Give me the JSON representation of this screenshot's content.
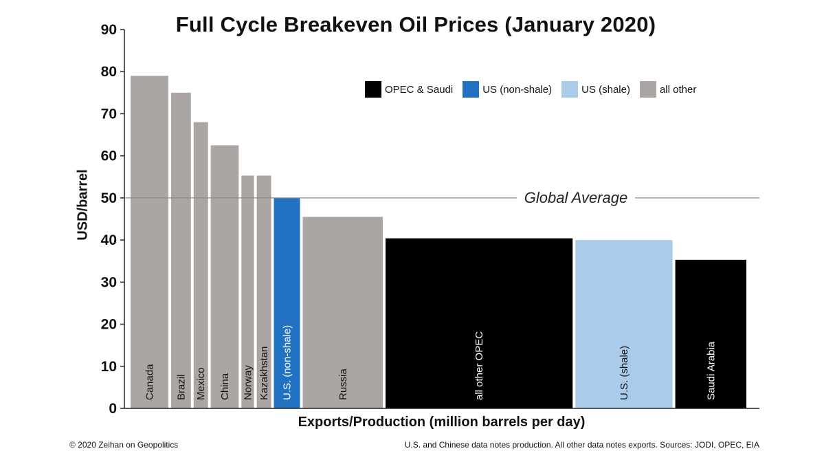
{
  "chart_data": {
    "type": "bar",
    "variable_width": true,
    "title": "Full Cycle Breakeven Oil Prices (January 2020)",
    "xlabel": "Exports/Production (million barrels per day)",
    "ylabel": "USD/barrel",
    "ylim": [
      0,
      90
    ],
    "yticks": [
      "0",
      "10",
      "20",
      "30",
      "40",
      "50",
      "60",
      "70",
      "80",
      "90"
    ],
    "grid": false,
    "legend_placement": "top-right",
    "colors": {
      "opec": "#000000",
      "us_nonshale": "#2272c3",
      "us_shale": "#abcbeb",
      "other": "#aba5a3",
      "axis": "#222222",
      "reference_line": "#8a8a8a"
    },
    "legend": [
      {
        "label": "OPEC & Saudi",
        "group": "opec"
      },
      {
        "label": "US (non-shale)",
        "group": "us_nonshale"
      },
      {
        "label": "US (shale)",
        "group": "us_shale"
      },
      {
        "label": "all other",
        "group": "other"
      }
    ],
    "reference_line": {
      "label": "Global Average",
      "value": 50
    },
    "bars": [
      {
        "label": "Canada",
        "value": 79,
        "width": 4.2,
        "group": "other"
      },
      {
        "label": "Brazil",
        "value": 75,
        "width": 2.2,
        "group": "other"
      },
      {
        "label": "Mexico",
        "value": 68,
        "width": 1.6,
        "group": "other"
      },
      {
        "label": "China",
        "value": 62.5,
        "width": 3.1,
        "group": "other"
      },
      {
        "label": "Norway",
        "value": 55.3,
        "width": 1.4,
        "group": "other"
      },
      {
        "label": "Kazakhstan",
        "value": 55.3,
        "width": 1.6,
        "group": "other"
      },
      {
        "label": "U.S. (non-shale)",
        "value": 50,
        "width": 2.9,
        "group": "us_nonshale"
      },
      {
        "label": "Russia",
        "value": 45.5,
        "width": 8.9,
        "group": "other"
      },
      {
        "label": "all other OPEC",
        "value": 40.4,
        "width": 20.8,
        "group": "opec"
      },
      {
        "label": "U.S. (shale)",
        "value": 40,
        "width": 10.8,
        "group": "us_shale"
      },
      {
        "label": "Saudi Arabia",
        "value": 35.3,
        "width": 7.9,
        "group": "opec"
      }
    ]
  },
  "footer": {
    "copyright": "© 2020 Zeihan on Geopolitics",
    "note": "U.S. and Chinese data notes production. All other data notes exports. Sources: JODI, OPEC, EIA"
  }
}
